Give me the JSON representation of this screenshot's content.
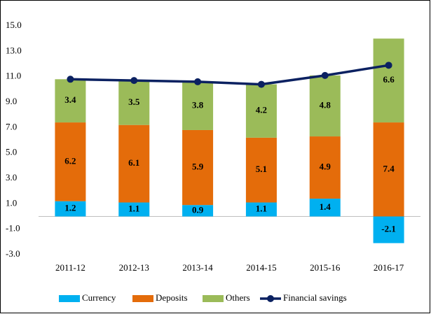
{
  "chart_data": {
    "type": "stacked-bar-line",
    "categories": [
      "2011-12",
      "2012-13",
      "2013-14",
      "2014-15",
      "2015-16",
      "2016-17"
    ],
    "series": [
      {
        "name": "Currency",
        "color": "#00b0f0",
        "values": [
          1.2,
          1.1,
          0.9,
          1.1,
          1.4,
          -2.1
        ]
      },
      {
        "name": "Deposits",
        "color": "#e46c0a",
        "values": [
          6.2,
          6.1,
          5.9,
          5.1,
          4.9,
          7.4
        ]
      },
      {
        "name": "Others",
        "color": "#9bbb59",
        "values": [
          3.4,
          3.5,
          3.8,
          4.2,
          4.8,
          6.6
        ]
      },
      {
        "name": "Financial savings",
        "color": "#0b2161",
        "type": "line",
        "values": [
          10.8,
          10.7,
          10.6,
          10.4,
          11.1,
          11.9
        ]
      }
    ],
    "ylim": [
      -3,
      15
    ],
    "yticks": [
      {
        "value": -3,
        "label": "-3.0"
      },
      {
        "value": -1,
        "label": "-1.0"
      },
      {
        "value": 1,
        "label": "1.0"
      },
      {
        "value": 3,
        "label": "3.0"
      },
      {
        "value": 5,
        "label": "5.0"
      },
      {
        "value": 7,
        "label": "7.0"
      },
      {
        "value": 9,
        "label": "9.0"
      },
      {
        "value": 11,
        "label": "11.0"
      },
      {
        "value": 13,
        "label": "13.0"
      },
      {
        "value": 15,
        "label": "15.0"
      }
    ],
    "legend": "bottom"
  }
}
